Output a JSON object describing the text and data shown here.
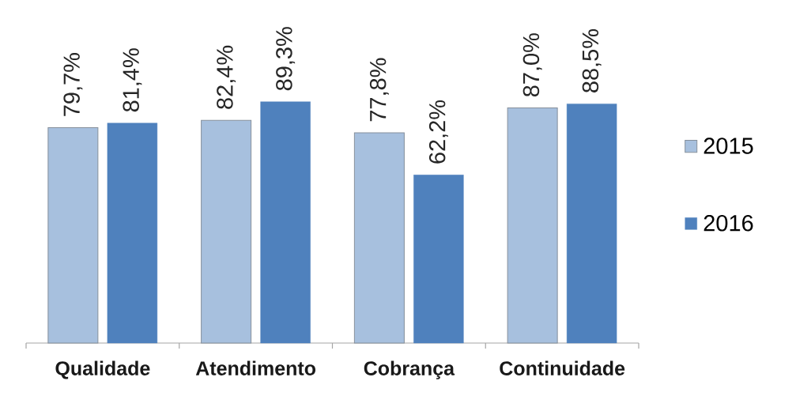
{
  "chart_data": {
    "type": "bar",
    "categories": [
      "Qualidade",
      "Atendimento",
      "Cobrança",
      "Continuidade"
    ],
    "series": [
      {
        "name": "2015",
        "color": "#a7c0de",
        "values": [
          79.7,
          82.4,
          77.8,
          87.0
        ],
        "value_labels": [
          "79,7%",
          "82,4%",
          "77,8%",
          "87,0%"
        ]
      },
      {
        "name": "2016",
        "color": "#4f81bd",
        "values": [
          81.4,
          89.3,
          62.2,
          88.5
        ],
        "value_labels": [
          "81,4%",
          "89,3%",
          "62,2%",
          "88,5%"
        ]
      }
    ],
    "legend": "right",
    "tick_labels": "x"
  }
}
